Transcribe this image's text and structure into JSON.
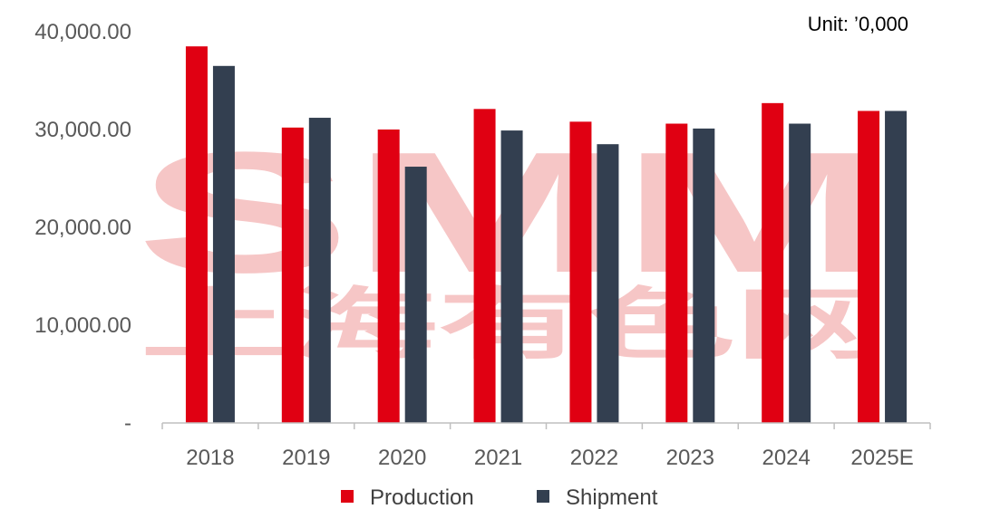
{
  "chart_data": {
    "type": "bar",
    "categories": [
      "2018",
      "2019",
      "2020",
      "2021",
      "2022",
      "2023",
      "2024",
      "2025E"
    ],
    "series": [
      {
        "name": "Production",
        "color": "#E00012",
        "values": [
          38500,
          30200,
          30000,
          32100,
          30800,
          30600,
          32700,
          31900
        ]
      },
      {
        "name": "Shipment",
        "color": "#333F50",
        "values": [
          36500,
          31200,
          26200,
          29900,
          28500,
          30100,
          30600,
          31900
        ]
      }
    ],
    "ylim": [
      0,
      40000
    ],
    "yticks": [
      0,
      10000,
      20000,
      30000,
      40000
    ],
    "ytick_labels": [
      "-",
      "10,000.00",
      "20,000.00",
      "30,000.00",
      "40,000.00"
    ],
    "unit_label": "Unit: ’0,000",
    "grid": false,
    "legend_position": "bottom"
  },
  "watermark": {
    "text": "SMM",
    "subtext": "上海有色网",
    "color": "#F2A9A9"
  }
}
